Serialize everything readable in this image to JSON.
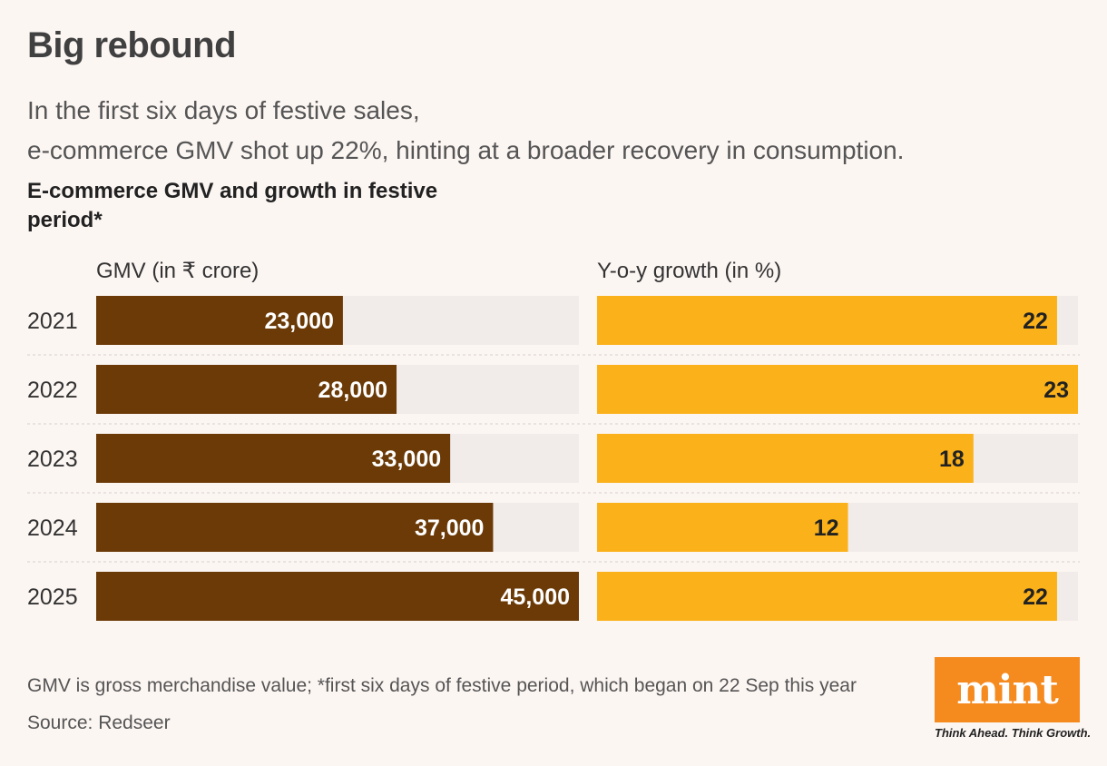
{
  "header": {
    "title": "Big rebound",
    "subtitle_lines": [
      "In the first six days of festive sales,",
      "e-commerce GMV shot up 22%, hinting at a broader recovery in consumption."
    ],
    "chart_title": "E-commerce GMV and growth in festive period*"
  },
  "chart_data": {
    "type": "bar",
    "orientation": "horizontal",
    "categories": [
      "2021",
      "2022",
      "2023",
      "2024",
      "2025"
    ],
    "series": [
      {
        "name": "GMV (in ₹ crore)",
        "values": [
          23000,
          28000,
          33000,
          37000,
          45000
        ],
        "labels": [
          "23,000",
          "28,000",
          "33,000",
          "37,000",
          "45,000"
        ],
        "xlim": [
          0,
          45000
        ],
        "color": "#6b3a07",
        "label_color": "#ffffff"
      },
      {
        "name": "Y-o-y growth (in %)",
        "values": [
          22,
          23,
          18,
          12,
          22
        ],
        "labels": [
          "22",
          "23",
          "18",
          "12",
          "22"
        ],
        "xlim": [
          0,
          23
        ],
        "color": "#fbb119",
        "label_color": "#222222"
      }
    ],
    "track_color": "#f1ebea",
    "grid": false
  },
  "footer": {
    "footnote": "GMV is gross merchandise value; *first six days of festive period, which began on 22 Sep this year",
    "source": "Source: Redseer"
  },
  "branding": {
    "logo_text": "mint",
    "tagline": "Think Ahead. Think Growth.",
    "logo_color": "#f58a1f"
  }
}
